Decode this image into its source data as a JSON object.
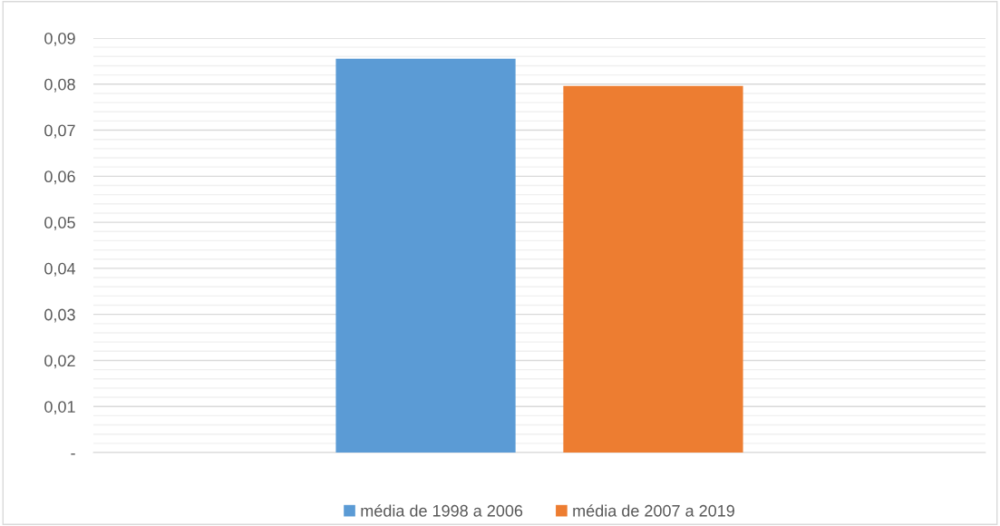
{
  "chart_data": {
    "type": "bar",
    "categories": [
      null
    ],
    "series": [
      {
        "name": "média de 1998 a 2006",
        "color": "#5b9bd5",
        "values": [
          0.0855
        ]
      },
      {
        "name": "média de 2007 a 2019",
        "color": "#ed7d31",
        "values": [
          0.0796
        ]
      }
    ],
    "ylim": [
      0,
      0.09
    ],
    "yticks": [
      {
        "value": 0,
        "label": "-"
      },
      {
        "value": 0.002,
        "label": null
      },
      {
        "value": 0.004,
        "label": null
      },
      {
        "value": 0.006,
        "label": null
      },
      {
        "value": 0.008,
        "label": null
      },
      {
        "value": 0.01,
        "label": "0,01"
      },
      {
        "value": 0.012,
        "label": null
      },
      {
        "value": 0.014,
        "label": null
      },
      {
        "value": 0.016,
        "label": null
      },
      {
        "value": 0.018,
        "label": null
      },
      {
        "value": 0.02,
        "label": "0,02"
      },
      {
        "value": 0.022,
        "label": null
      },
      {
        "value": 0.024,
        "label": null
      },
      {
        "value": 0.026,
        "label": null
      },
      {
        "value": 0.028,
        "label": null
      },
      {
        "value": 0.03,
        "label": "0,03"
      },
      {
        "value": 0.032,
        "label": null
      },
      {
        "value": 0.034,
        "label": null
      },
      {
        "value": 0.036,
        "label": null
      },
      {
        "value": 0.038,
        "label": null
      },
      {
        "value": 0.04,
        "label": "0,04"
      },
      {
        "value": 0.042,
        "label": null
      },
      {
        "value": 0.044,
        "label": null
      },
      {
        "value": 0.046,
        "label": null
      },
      {
        "value": 0.048,
        "label": null
      },
      {
        "value": 0.05,
        "label": "0,05"
      },
      {
        "value": 0.052,
        "label": null
      },
      {
        "value": 0.054,
        "label": null
      },
      {
        "value": 0.056,
        "label": null
      },
      {
        "value": 0.058,
        "label": null
      },
      {
        "value": 0.06,
        "label": "0,06"
      },
      {
        "value": 0.062,
        "label": null
      },
      {
        "value": 0.064,
        "label": null
      },
      {
        "value": 0.066,
        "label": null
      },
      {
        "value": 0.068,
        "label": null
      },
      {
        "value": 0.07,
        "label": "0,07"
      },
      {
        "value": 0.072,
        "label": null
      },
      {
        "value": 0.074,
        "label": null
      },
      {
        "value": 0.076,
        "label": null
      },
      {
        "value": 0.078,
        "label": null
      },
      {
        "value": 0.08,
        "label": "0,08"
      },
      {
        "value": 0.082,
        "label": null
      },
      {
        "value": 0.084,
        "label": null
      },
      {
        "value": 0.086,
        "label": null
      },
      {
        "value": 0.088,
        "label": null
      },
      {
        "value": 0.09,
        "label": "0,09"
      }
    ],
    "grid": "y",
    "legend": "bottom"
  }
}
